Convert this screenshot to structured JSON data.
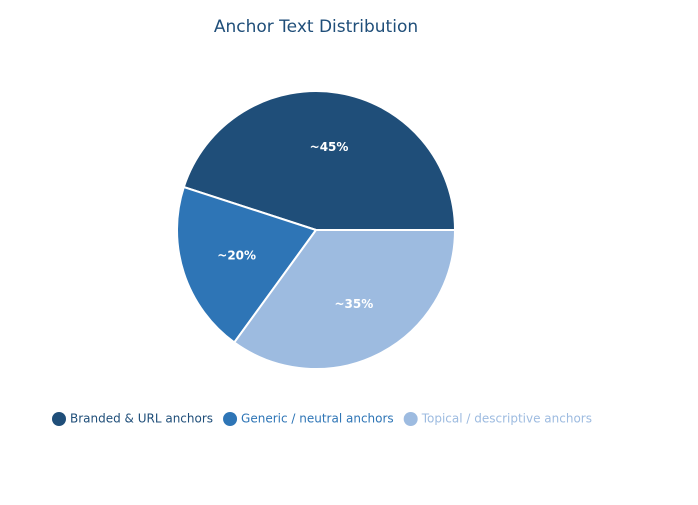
{
  "chart_data": {
    "type": "pie",
    "title": "Anchor Text Distribution",
    "categories": [
      "Branded & URL anchors",
      "Generic / neutral anchors",
      "Topical / descriptive anchors"
    ],
    "values": [
      45,
      20,
      35
    ],
    "value_labels": [
      "~45%",
      "~20%",
      "~35%"
    ],
    "colors": [
      "#1f4e79",
      "#2e75b6",
      "#9dbbe0"
    ]
  }
}
